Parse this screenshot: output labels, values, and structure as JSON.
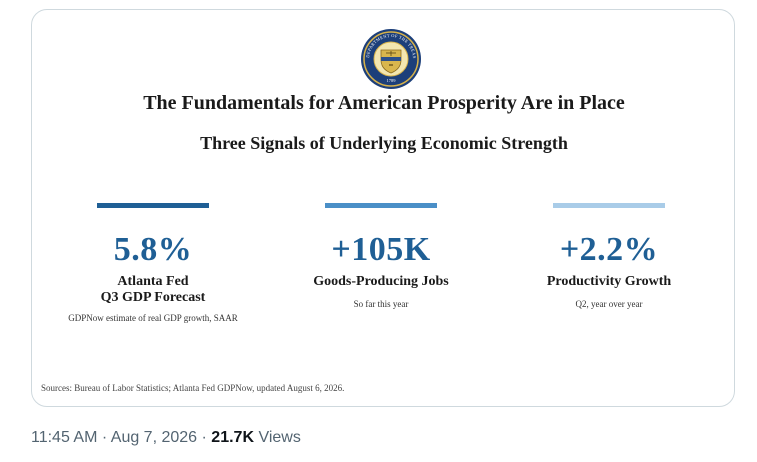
{
  "card": {
    "title": "The Fundamentals for American Prosperity Are in Place",
    "subtitle": "Three Signals of Underlying Economic Strength",
    "seal": {
      "icon": "treasury-seal-icon",
      "text": "THE DEPARTMENT OF THE TREASURY",
      "year": "1789"
    },
    "metrics": [
      {
        "value": "5.8%",
        "label_line1": "Atlanta Fed",
        "label_line2": "Q3 GDP Forecast",
        "note": "GDPNow estimate of real GDP growth, SAAR",
        "bar_color": "#1f5f95"
      },
      {
        "value": "+105K",
        "label_line1": "Goods-Producing Jobs",
        "label_line2": "",
        "note": "So far this year",
        "bar_color": "#4a8fc7"
      },
      {
        "value": "+2.2%",
        "label_line1": "Productivity Growth",
        "label_line2": "",
        "note": "Q2, year over year",
        "bar_color": "#a9cce8"
      }
    ],
    "sources": "Sources: Bureau of Labor Statistics; Atlanta Fed GDPNow, updated August 6, 2026."
  },
  "post_meta": {
    "time": "11:45 AM",
    "date": "Aug 7, 2026",
    "views_count": "21.7K",
    "views_label": "Views"
  },
  "colors": {
    "accent": "#1f5f95",
    "meta_text": "#536471"
  }
}
